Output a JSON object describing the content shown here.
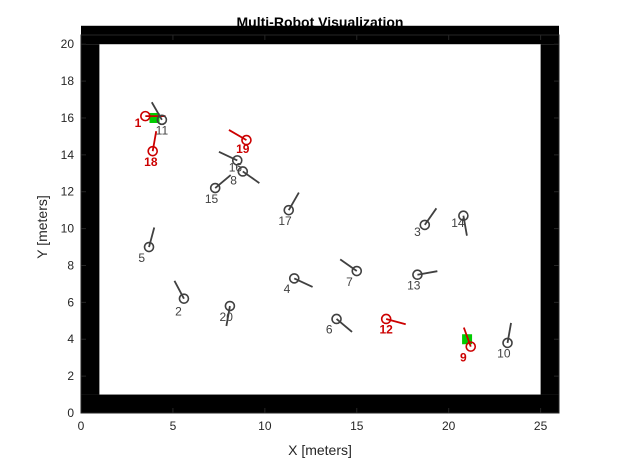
{
  "chart_data": {
    "type": "scatter",
    "title": "Multi-Robot Visualization",
    "xlabel": "X [meters]",
    "ylabel": "Y [meters]",
    "xlim": [
      0,
      26
    ],
    "ylim": [
      0,
      20.5
    ],
    "xticks": [
      "0",
      "5",
      "10",
      "15",
      "20",
      "25"
    ],
    "xtick_values": [
      0,
      5,
      10,
      15,
      20,
      25
    ],
    "yticks": [
      "0",
      "2",
      "4",
      "6",
      "8",
      "10",
      "12",
      "14",
      "16",
      "18",
      "20"
    ],
    "ytick_values": [
      0,
      2,
      4,
      6,
      8,
      10,
      12,
      14,
      16,
      18,
      20
    ],
    "grid": false,
    "legend": "none",
    "colors": {
      "wall": "#000000",
      "robot": "#404040",
      "highlight_robot": "#cc0000",
      "goal": "#00cc00",
      "axis": "#262626"
    },
    "walls": {
      "outer": [
        1,
        25,
        1,
        20
      ],
      "thickness": 1
    },
    "goals": [
      {
        "x": 4.0,
        "y": 16.0
      },
      {
        "x": 21.0,
        "y": 4.0
      }
    ],
    "robots": [
      {
        "id": "1",
        "x": 3.5,
        "y": 16.1,
        "heading": 0,
        "highlight": true,
        "label_dx": -0.4,
        "label_dy": -0.6
      },
      {
        "id": "2",
        "x": 5.6,
        "y": 6.2,
        "heading": 118,
        "highlight": false,
        "label_dx": -0.3,
        "label_dy": -0.9
      },
      {
        "id": "3",
        "x": 18.7,
        "y": 10.2,
        "heading": 55,
        "highlight": false,
        "label_dx": -0.4,
        "label_dy": -0.6
      },
      {
        "id": "4",
        "x": 11.6,
        "y": 7.3,
        "heading": -25,
        "highlight": false,
        "label_dx": -0.4,
        "label_dy": -0.8
      },
      {
        "id": "5",
        "x": 3.7,
        "y": 9.0,
        "heading": 75,
        "highlight": false,
        "label_dx": -0.4,
        "label_dy": -0.8
      },
      {
        "id": "6",
        "x": 13.9,
        "y": 5.1,
        "heading": -40,
        "highlight": false,
        "label_dx": -0.4,
        "label_dy": -0.8
      },
      {
        "id": "7",
        "x": 15.0,
        "y": 7.7,
        "heading": 145,
        "highlight": false,
        "label_dx": -0.4,
        "label_dy": -0.8
      },
      {
        "id": "8",
        "x": 8.5,
        "y": 13.7,
        "heading": 155,
        "highlight": false,
        "label_dx": -0.2,
        "label_dy": -1.3
      },
      {
        "id": "9",
        "x": 21.2,
        "y": 3.6,
        "heading": 110,
        "highlight": true,
        "label_dx": -0.4,
        "label_dy": -0.8
      },
      {
        "id": "10",
        "x": 23.2,
        "y": 3.8,
        "heading": 80,
        "highlight": false,
        "label_dx": -0.2,
        "label_dy": -0.8
      },
      {
        "id": "11",
        "x": 4.4,
        "y": 15.9,
        "heading": 120,
        "highlight": false,
        "label_dx": 0.0,
        "label_dy": -0.8
      },
      {
        "id": "12",
        "x": 16.6,
        "y": 5.1,
        "heading": -15,
        "highlight": true,
        "label_dx": 0.0,
        "label_dy": -0.8
      },
      {
        "id": "13",
        "x": 18.3,
        "y": 7.5,
        "heading": 10,
        "highlight": false,
        "label_dx": -0.2,
        "label_dy": -0.8
      },
      {
        "id": "14",
        "x": 20.8,
        "y": 10.7,
        "heading": -80,
        "highlight": false,
        "label_dx": -0.3,
        "label_dy": -0.6
      },
      {
        "id": "15",
        "x": 7.3,
        "y": 12.2,
        "heading": 40,
        "highlight": false,
        "label_dx": -0.2,
        "label_dy": -0.8
      },
      {
        "id": "16",
        "x": 8.8,
        "y": 13.1,
        "heading": -35,
        "highlight": false,
        "label_dx": -0.4,
        "label_dy": 0.0
      },
      {
        "id": "17",
        "x": 11.3,
        "y": 11.0,
        "heading": 60,
        "highlight": false,
        "label_dx": -0.2,
        "label_dy": -0.8
      },
      {
        "id": "18",
        "x": 3.9,
        "y": 14.2,
        "heading": 80,
        "highlight": true,
        "label_dx": -0.1,
        "label_dy": -0.8
      },
      {
        "id": "19",
        "x": 9.0,
        "y": 14.8,
        "heading": 150,
        "highlight": true,
        "label_dx": -0.2,
        "label_dy": -0.7
      },
      {
        "id": "20",
        "x": 8.1,
        "y": 5.8,
        "heading": -100,
        "highlight": false,
        "label_dx": -0.2,
        "label_dy": -0.8
      }
    ]
  }
}
